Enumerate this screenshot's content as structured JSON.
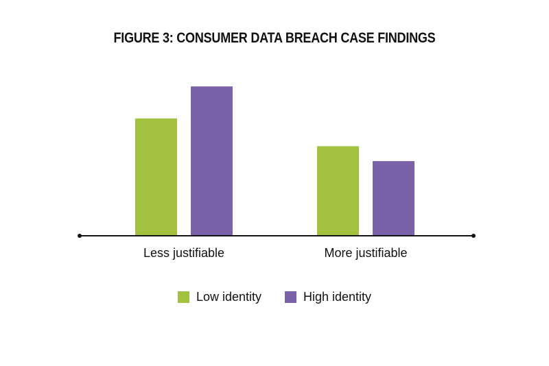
{
  "chart_data": {
    "type": "bar",
    "title": "FIGURE 3: CONSUMER DATA BREACH CASE FINDINGS",
    "xlabel": "",
    "ylabel": "",
    "categories": [
      "Less justifiable",
      "More justifiable"
    ],
    "series": [
      {
        "name": "Low identity",
        "values": [
          5.5,
          4.2
        ],
        "color": "#a2c13f"
      },
      {
        "name": "High identity",
        "values": [
          7.0,
          3.5
        ],
        "color": "#7a61a8"
      }
    ],
    "ylim": [
      0,
      8
    ],
    "grid": false,
    "legend_position": "bottom-center",
    "axis_color": "#111111"
  }
}
